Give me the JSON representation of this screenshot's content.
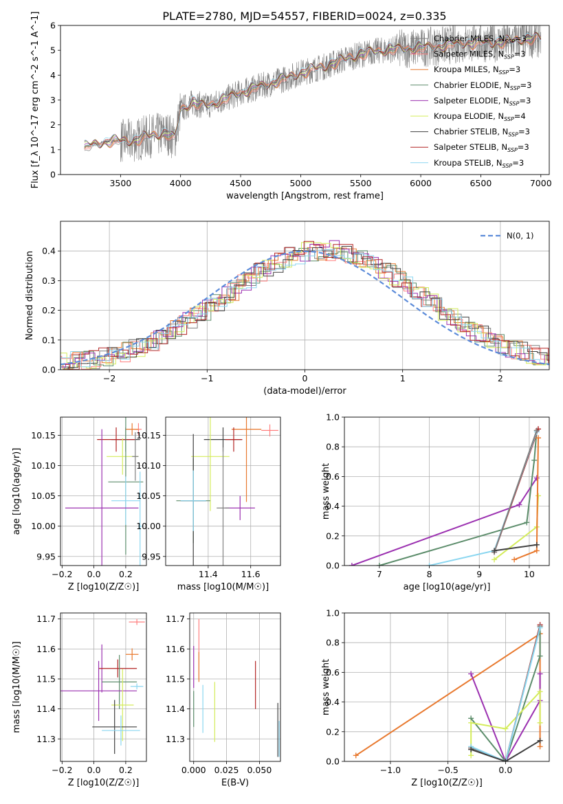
{
  "figure": {
    "title": "PLATE=2780, MJD=54557, FIBERID=0024, z=0.335"
  },
  "models": [
    {
      "name": "Chabrier MILES, N_SSP=3",
      "color": "#7f7f7f"
    },
    {
      "name": "Salpeter MILES, N_SSP=3",
      "color": "#ff7f7f"
    },
    {
      "name": "Kroupa MILES, N_SSP=3",
      "color": "#e8782d"
    },
    {
      "name": "Chabrier ELODIE, N_SSP=3",
      "color": "#5b8c6a"
    },
    {
      "name": "Salpeter ELODIE, N_SSP=3",
      "color": "#9b30b0"
    },
    {
      "name": "Kroupa ELODIE, N_SSP=4",
      "color": "#d4ec5a"
    },
    {
      "name": "Chabrier STELIB, N_SSP=3",
      "color": "#3f3f3f"
    },
    {
      "name": "Salpeter STELIB, N_SSP=3",
      "color": "#b22222"
    },
    {
      "name": "Kroupa STELIB, N_SSP=3",
      "color": "#8ad6f0"
    }
  ],
  "chart_data": [
    {
      "id": "spectrum",
      "type": "line",
      "xlabel": "wavelength [Angstrom, rest frame]",
      "ylabel": "Flux [f_λ 10^-17 erg cm^-2 s^-1 A^-1]",
      "xlim": [
        3000,
        7070
      ],
      "ylim": [
        0,
        6
      ],
      "xticks": [
        3500,
        4000,
        4500,
        5000,
        5500,
        6000,
        6500,
        7000
      ],
      "yticks": [
        0,
        1,
        2,
        3,
        4,
        5,
        6
      ],
      "data_color": "#808080",
      "continuum_points": [
        [
          3200,
          1.1
        ],
        [
          3400,
          1.35
        ],
        [
          3600,
          1.35
        ],
        [
          3700,
          1.5
        ],
        [
          3800,
          1.6
        ],
        [
          3900,
          1.65
        ],
        [
          3950,
          1.4
        ],
        [
          4000,
          2.6
        ],
        [
          4100,
          2.9
        ],
        [
          4200,
          2.75
        ],
        [
          4300,
          2.9
        ],
        [
          4500,
          3.3
        ],
        [
          4700,
          3.6
        ],
        [
          4900,
          3.9
        ],
        [
          5000,
          4.1
        ],
        [
          5200,
          4.35
        ],
        [
          5400,
          4.7
        ],
        [
          5600,
          4.95
        ],
        [
          5800,
          5.05
        ],
        [
          6000,
          5.1
        ],
        [
          6200,
          5.2
        ],
        [
          6400,
          5.3
        ],
        [
          6600,
          5.3
        ],
        [
          6800,
          5.4
        ],
        [
          7000,
          5.5
        ]
      ]
    },
    {
      "id": "residuals",
      "type": "step-histogram",
      "xlabel": "(data-model)/error",
      "ylabel": "Normed distribution",
      "xlim": [
        -2.5,
        2.5
      ],
      "ylim": [
        0,
        0.5
      ],
      "xticks": [
        -2,
        -1,
        0,
        1,
        2
      ],
      "yticks": [
        0.0,
        0.1,
        0.2,
        0.3,
        0.4
      ],
      "gaussian_label": "N(0, 1)",
      "gaussian_color": "#5b8bd9"
    },
    {
      "id": "age-vs-Z",
      "type": "errorbar",
      "xlabel": "Z [log10(Z/Z☉)]",
      "ylabel": "age [log10(age/yr)]",
      "xlim": [
        -0.21,
        0.33
      ],
      "ylim": [
        9.935,
        10.18
      ],
      "xticks": [
        -0.2,
        0.0,
        0.2
      ],
      "yticks": [
        9.95,
        10.0,
        10.05,
        10.1,
        10.15
      ],
      "points": [
        {
          "x": 0.28,
          "y": 10.16,
          "xerr": 0.02,
          "yerr": 0.01,
          "c": 1
        },
        {
          "x": 0.24,
          "y": 10.16,
          "xerr": 0.04,
          "yerr": 0.01,
          "c": 2
        },
        {
          "x": 0.2,
          "y": 10.143,
          "xerr": 0.09,
          "yerr": 0.02,
          "c": 6
        },
        {
          "x": 0.14,
          "y": 10.143,
          "xerr": 0.12,
          "yerr": 0.02,
          "c": 7
        },
        {
          "x": 0.18,
          "y": 10.115,
          "xerr": 0.1,
          "yerr": 0.03,
          "c": 5
        },
        {
          "x": 0.26,
          "y": 10.115,
          "xerr": 0.02,
          "yerr": 0.04,
          "c": 0
        },
        {
          "x": 0.2,
          "y": 10.073,
          "xerr": 0.11,
          "yerr": 0.12,
          "c": 3
        },
        {
          "x": 0.2,
          "y": 10.042,
          "xerr": 0.09,
          "yerr": 0.04,
          "c": 8
        },
        {
          "x": 0.05,
          "y": 10.03,
          "xerr": 0.23,
          "yerr": 0.13,
          "c": 4
        },
        {
          "x": 0.29,
          "y": 10.0,
          "xerr": 0.01,
          "yerr": 0.09,
          "c": 8
        }
      ]
    },
    {
      "id": "age-vs-mass",
      "type": "errorbar",
      "xlabel": "mass [log10(M/M☉)]",
      "ylabel": "",
      "xlim": [
        11.2,
        11.74
      ],
      "ylim": [
        9.935,
        10.18
      ],
      "xticks": [
        11.4,
        11.6
      ],
      "yticks": [
        9.95,
        10.0,
        10.05,
        10.1,
        10.15
      ],
      "points": [
        {
          "x": 11.69,
          "y": 10.158,
          "xerr": 0.04,
          "yerr": 0.01,
          "c": 1
        },
        {
          "x": 11.58,
          "y": 10.16,
          "xerr": 0.07,
          "yerr": 0.12,
          "c": 2
        },
        {
          "x": 11.47,
          "y": 10.143,
          "xerr": 0.09,
          "yerr": 0.02,
          "c": 6
        },
        {
          "x": 11.52,
          "y": 10.143,
          "xerr": 0.04,
          "yerr": 0.02,
          "c": 7
        },
        {
          "x": 11.41,
          "y": 10.115,
          "xerr": 0.09,
          "yerr": 0.09,
          "c": 5
        },
        {
          "x": 11.33,
          "y": 10.042,
          "xerr": 0.08,
          "yerr": 0.07,
          "c": 3
        },
        {
          "x": 11.33,
          "y": 10.042,
          "xerr": 0.06,
          "yerr": 0.11,
          "c": 6
        },
        {
          "x": 11.33,
          "y": 10.042,
          "xerr": 0.06,
          "yerr": 0.05,
          "c": 8
        },
        {
          "x": 11.55,
          "y": 10.03,
          "xerr": 0.07,
          "yerr": 0.02,
          "c": 4
        },
        {
          "x": 11.47,
          "y": 10.03,
          "xerr": 0.03,
          "yerr": 0.1,
          "c": 0
        }
      ]
    },
    {
      "id": "mass-weight-vs-age",
      "type": "line",
      "xlabel": "age [log10(age/yr)]",
      "ylabel": "mass weight",
      "xlim": [
        6.3,
        10.4
      ],
      "ylim": [
        0,
        1
      ],
      "xticks": [
        7,
        8,
        9,
        10
      ],
      "yticks": [
        0.0,
        0.2,
        0.4,
        0.6,
        0.8,
        1.0
      ],
      "series": [
        {
          "c": 4,
          "x": [
            6.45,
            9.8,
            10.15
          ],
          "y": [
            0.0,
            0.41,
            0.59
          ]
        },
        {
          "c": 3,
          "x": [
            7.0,
            9.95,
            10.1,
            10.15
          ],
          "y": [
            0.0,
            0.29,
            0.71,
            0.91
          ]
        },
        {
          "c": 5,
          "x": [
            9.3,
            10.15,
            10.18
          ],
          "y": [
            0.04,
            0.26,
            0.47
          ]
        },
        {
          "c": 7,
          "x": [
            9.3,
            10.18
          ],
          "y": [
            0.09,
            0.92
          ]
        },
        {
          "c": 8,
          "x": [
            8.0,
            9.3,
            10.15
          ],
          "y": [
            0.0,
            0.1,
            0.9
          ]
        },
        {
          "c": 0,
          "x": [
            9.3,
            10.15
          ],
          "y": [
            0.09,
            0.91
          ]
        },
        {
          "c": 2,
          "x": [
            9.7,
            10.15,
            10.18
          ],
          "y": [
            0.04,
            0.1,
            0.86
          ]
        },
        {
          "c": 6,
          "x": [
            9.3,
            10.15
          ],
          "y": [
            0.1,
            0.14
          ]
        }
      ]
    },
    {
      "id": "mass-vs-Z",
      "type": "errorbar",
      "xlabel": "Z [log10(Z/Z☉)]",
      "ylabel": "mass [log10(M/M☉)]",
      "xlim": [
        -0.21,
        0.33
      ],
      "ylim": [
        11.225,
        11.72
      ],
      "xticks": [
        -0.2,
        0.0,
        0.2
      ],
      "yticks": [
        11.3,
        11.4,
        11.5,
        11.6,
        11.7
      ],
      "points": [
        {
          "x": 0.27,
          "y": 11.69,
          "xerr": 0.05,
          "yerr": 0.01,
          "c": 1
        },
        {
          "x": 0.24,
          "y": 11.582,
          "xerr": 0.04,
          "yerr": 0.02,
          "c": 2
        },
        {
          "x": 0.05,
          "y": 11.535,
          "xerr": 0.0,
          "yerr": 0.08,
          "c": 4
        },
        {
          "x": 0.15,
          "y": 11.535,
          "xerr": 0.12,
          "yerr": 0.03,
          "c": 7
        },
        {
          "x": 0.16,
          "y": 11.49,
          "xerr": 0.11,
          "yerr": 0.09,
          "c": 3
        },
        {
          "x": 0.27,
          "y": 11.475,
          "xerr": 0.04,
          "yerr": 0.01,
          "c": 8
        },
        {
          "x": 0.03,
          "y": 11.46,
          "xerr": 0.24,
          "yerr": 0.1,
          "c": 4
        },
        {
          "x": 0.18,
          "y": 11.413,
          "xerr": 0.07,
          "yerr": 0.12,
          "c": 5
        },
        {
          "x": 0.13,
          "y": 11.34,
          "xerr": 0.14,
          "yerr": 0.09,
          "c": 6
        },
        {
          "x": 0.17,
          "y": 11.328,
          "xerr": 0.12,
          "yerr": 0.05,
          "c": 8
        }
      ]
    },
    {
      "id": "mass-vs-EBV",
      "type": "errorbar",
      "xlabel": "E(B-V)",
      "ylabel": "",
      "xlim": [
        -0.003,
        0.066
      ],
      "ylim": [
        11.225,
        11.72
      ],
      "xticks": [
        0.0,
        0.025,
        0.05
      ],
      "yticks": [
        11.3,
        11.4,
        11.5,
        11.6,
        11.7
      ],
      "points": [
        {
          "x": 0.0,
          "y": 11.54,
          "yerr": 0.07,
          "c": 4
        },
        {
          "x": 0.0,
          "y": 11.4,
          "yerr": 0.06,
          "c": 3
        },
        {
          "x": 0.004,
          "y": 11.6,
          "yerr": 0.1,
          "c": 1
        },
        {
          "x": 0.004,
          "y": 11.54,
          "yerr": 0.05,
          "c": 2
        },
        {
          "x": 0.007,
          "y": 11.4,
          "yerr": 0.08,
          "c": 8
        },
        {
          "x": 0.016,
          "y": 11.39,
          "yerr": 0.1,
          "c": 5
        },
        {
          "x": 0.047,
          "y": 11.48,
          "yerr": 0.08,
          "c": 7
        },
        {
          "x": 0.064,
          "y": 11.33,
          "yerr": 0.09,
          "c": 6
        },
        {
          "x": 0.065,
          "y": 11.3,
          "yerr": 0.06,
          "c": 8
        }
      ]
    },
    {
      "id": "mass-weight-vs-Z",
      "type": "line",
      "xlabel": "Z [log10(Z/Z☉)]",
      "ylabel": "mass weight",
      "xlim": [
        -1.4,
        0.38
      ],
      "ylim": [
        0,
        1
      ],
      "xticks": [
        -1.0,
        -0.5,
        0.0
      ],
      "yticks": [
        0.0,
        0.2,
        0.4,
        0.6,
        0.8,
        1.0
      ],
      "series": [
        {
          "c": 2,
          "x": [
            -1.3,
            0.3,
            0.3
          ],
          "y": [
            0.04,
            0.86,
            0.1
          ]
        },
        {
          "c": 4,
          "x": [
            -0.3,
            0.0,
            0.3,
            0.3
          ],
          "y": [
            0.59,
            0.0,
            0.41,
            0.59
          ]
        },
        {
          "c": 3,
          "x": [
            -0.3,
            0.0,
            0.3,
            0.3
          ],
          "y": [
            0.29,
            0.0,
            0.71,
            0.91
          ]
        },
        {
          "c": 5,
          "x": [
            -0.3,
            -0.3,
            0.0,
            0.3,
            0.3
          ],
          "y": [
            0.04,
            0.26,
            0.22,
            0.47,
            0.26
          ]
        },
        {
          "c": 7,
          "x": [
            -0.3,
            0.0,
            0.3
          ],
          "y": [
            0.09,
            0.0,
            0.92
          ]
        },
        {
          "c": 0,
          "x": [
            -0.3,
            0.0,
            0.3
          ],
          "y": [
            0.09,
            0.0,
            0.91
          ]
        },
        {
          "c": 8,
          "x": [
            -0.3,
            0.0,
            0.3
          ],
          "y": [
            0.1,
            0.0,
            0.9
          ]
        },
        {
          "c": 6,
          "x": [
            -0.3,
            0.0,
            0.3
          ],
          "y": [
            0.08,
            0.0,
            0.14
          ]
        }
      ]
    }
  ]
}
